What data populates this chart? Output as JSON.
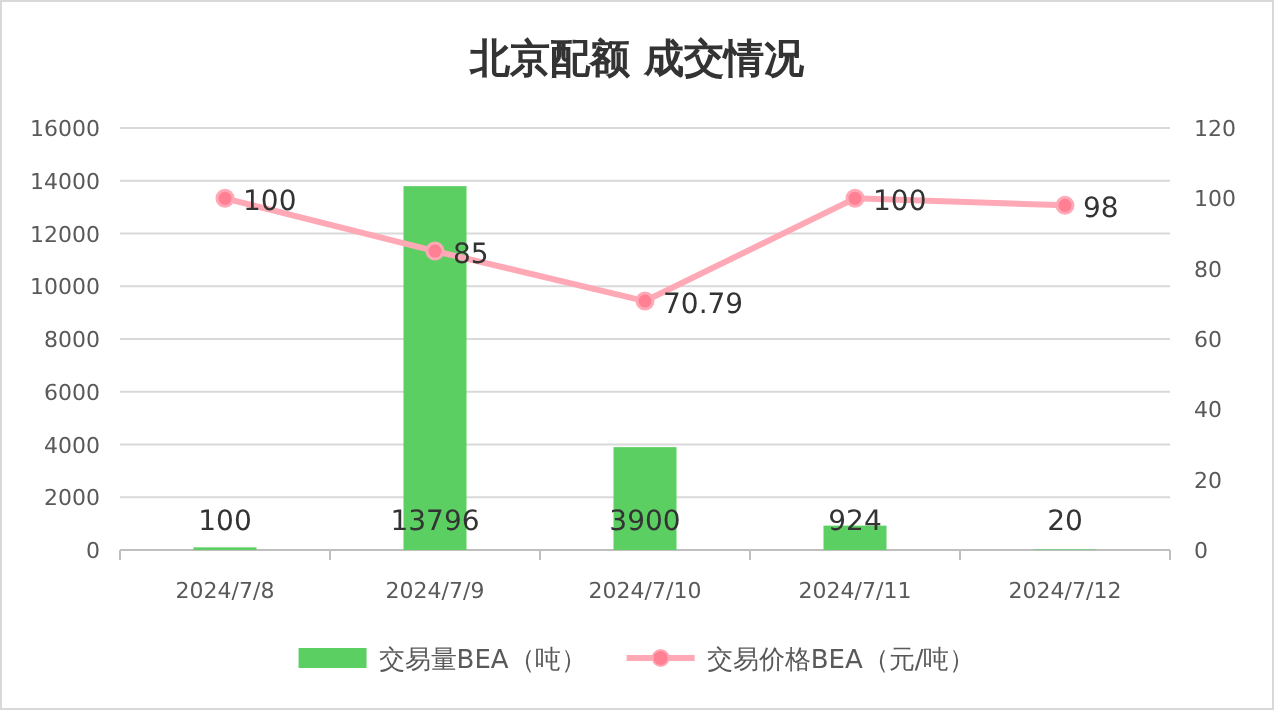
{
  "chart_data": {
    "type": "bar",
    "title": "北京配额 成交情况",
    "categories": [
      "2024/7/8",
      "2024/7/9",
      "2024/7/10",
      "2024/7/11",
      "2024/7/12"
    ],
    "series": [
      {
        "name": "交易量BEA（吨）",
        "color": "#5ccf63",
        "values": [
          100,
          13796,
          3900,
          924,
          20
        ]
      },
      {
        "name": "交易价格BEA（元/吨）",
        "type": "line",
        "axis": "y2",
        "color": "#ffa9b6",
        "values": [
          100,
          85,
          70.79,
          100,
          98
        ]
      }
    ],
    "ylim": [
      0,
      16000
    ],
    "yticks": [
      0,
      2000,
      4000,
      6000,
      8000,
      10000,
      12000,
      14000,
      16000
    ],
    "y2lim": [
      0,
      120
    ],
    "y2ticks": [
      0,
      20,
      40,
      60,
      80,
      100,
      120
    ],
    "grid": "y",
    "legend": "bottom",
    "marker": "circle",
    "line_style": "solid",
    "data_labels": true
  }
}
